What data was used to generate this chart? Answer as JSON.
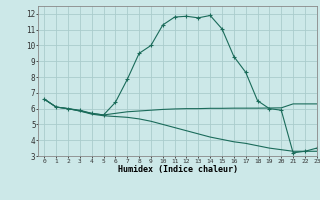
{
  "xlabel": "Humidex (Indice chaleur)",
  "bg_color": "#cce8e8",
  "grid_color": "#aacccc",
  "line_color": "#1a6b5a",
  "xlim": [
    -0.5,
    23
  ],
  "ylim": [
    3,
    12.5
  ],
  "xticks": [
    0,
    1,
    2,
    3,
    4,
    5,
    6,
    7,
    8,
    9,
    10,
    11,
    12,
    13,
    14,
    15,
    16,
    17,
    18,
    19,
    20,
    21,
    22,
    23
  ],
  "yticks": [
    3,
    4,
    5,
    6,
    7,
    8,
    9,
    10,
    11,
    12
  ],
  "curve1_x": [
    0,
    1,
    2,
    3,
    4,
    5,
    6,
    7,
    8,
    9,
    10,
    11,
    12,
    13,
    14,
    15,
    16,
    17,
    18,
    19,
    20,
    21,
    22,
    23
  ],
  "curve1_y": [
    6.6,
    6.1,
    6.0,
    5.9,
    5.7,
    5.6,
    6.4,
    7.85,
    9.5,
    10.0,
    11.3,
    11.8,
    11.85,
    11.75,
    11.9,
    11.05,
    9.3,
    8.3,
    6.5,
    6.0,
    5.9,
    3.2,
    3.3,
    3.5
  ],
  "curve2_x": [
    0,
    1,
    2,
    3,
    4,
    5,
    6,
    7,
    8,
    9,
    10,
    11,
    12,
    13,
    14,
    15,
    16,
    17,
    18,
    19,
    20,
    21,
    22,
    23
  ],
  "curve2_y": [
    6.6,
    6.1,
    6.0,
    5.85,
    5.7,
    5.6,
    5.7,
    5.8,
    5.85,
    5.9,
    5.95,
    5.98,
    6.0,
    6.0,
    6.02,
    6.02,
    6.03,
    6.03,
    6.03,
    6.04,
    6.05,
    6.3,
    6.3,
    6.3
  ],
  "curve3_x": [
    0,
    1,
    2,
    3,
    4,
    5,
    6,
    7,
    8,
    9,
    10,
    11,
    12,
    13,
    14,
    15,
    16,
    17,
    18,
    19,
    20,
    21,
    22,
    23
  ],
  "curve3_y": [
    6.6,
    6.1,
    6.0,
    5.85,
    5.65,
    5.55,
    5.5,
    5.45,
    5.35,
    5.2,
    5.0,
    4.8,
    4.6,
    4.4,
    4.2,
    4.05,
    3.9,
    3.8,
    3.65,
    3.5,
    3.4,
    3.3,
    3.3,
    3.3
  ]
}
